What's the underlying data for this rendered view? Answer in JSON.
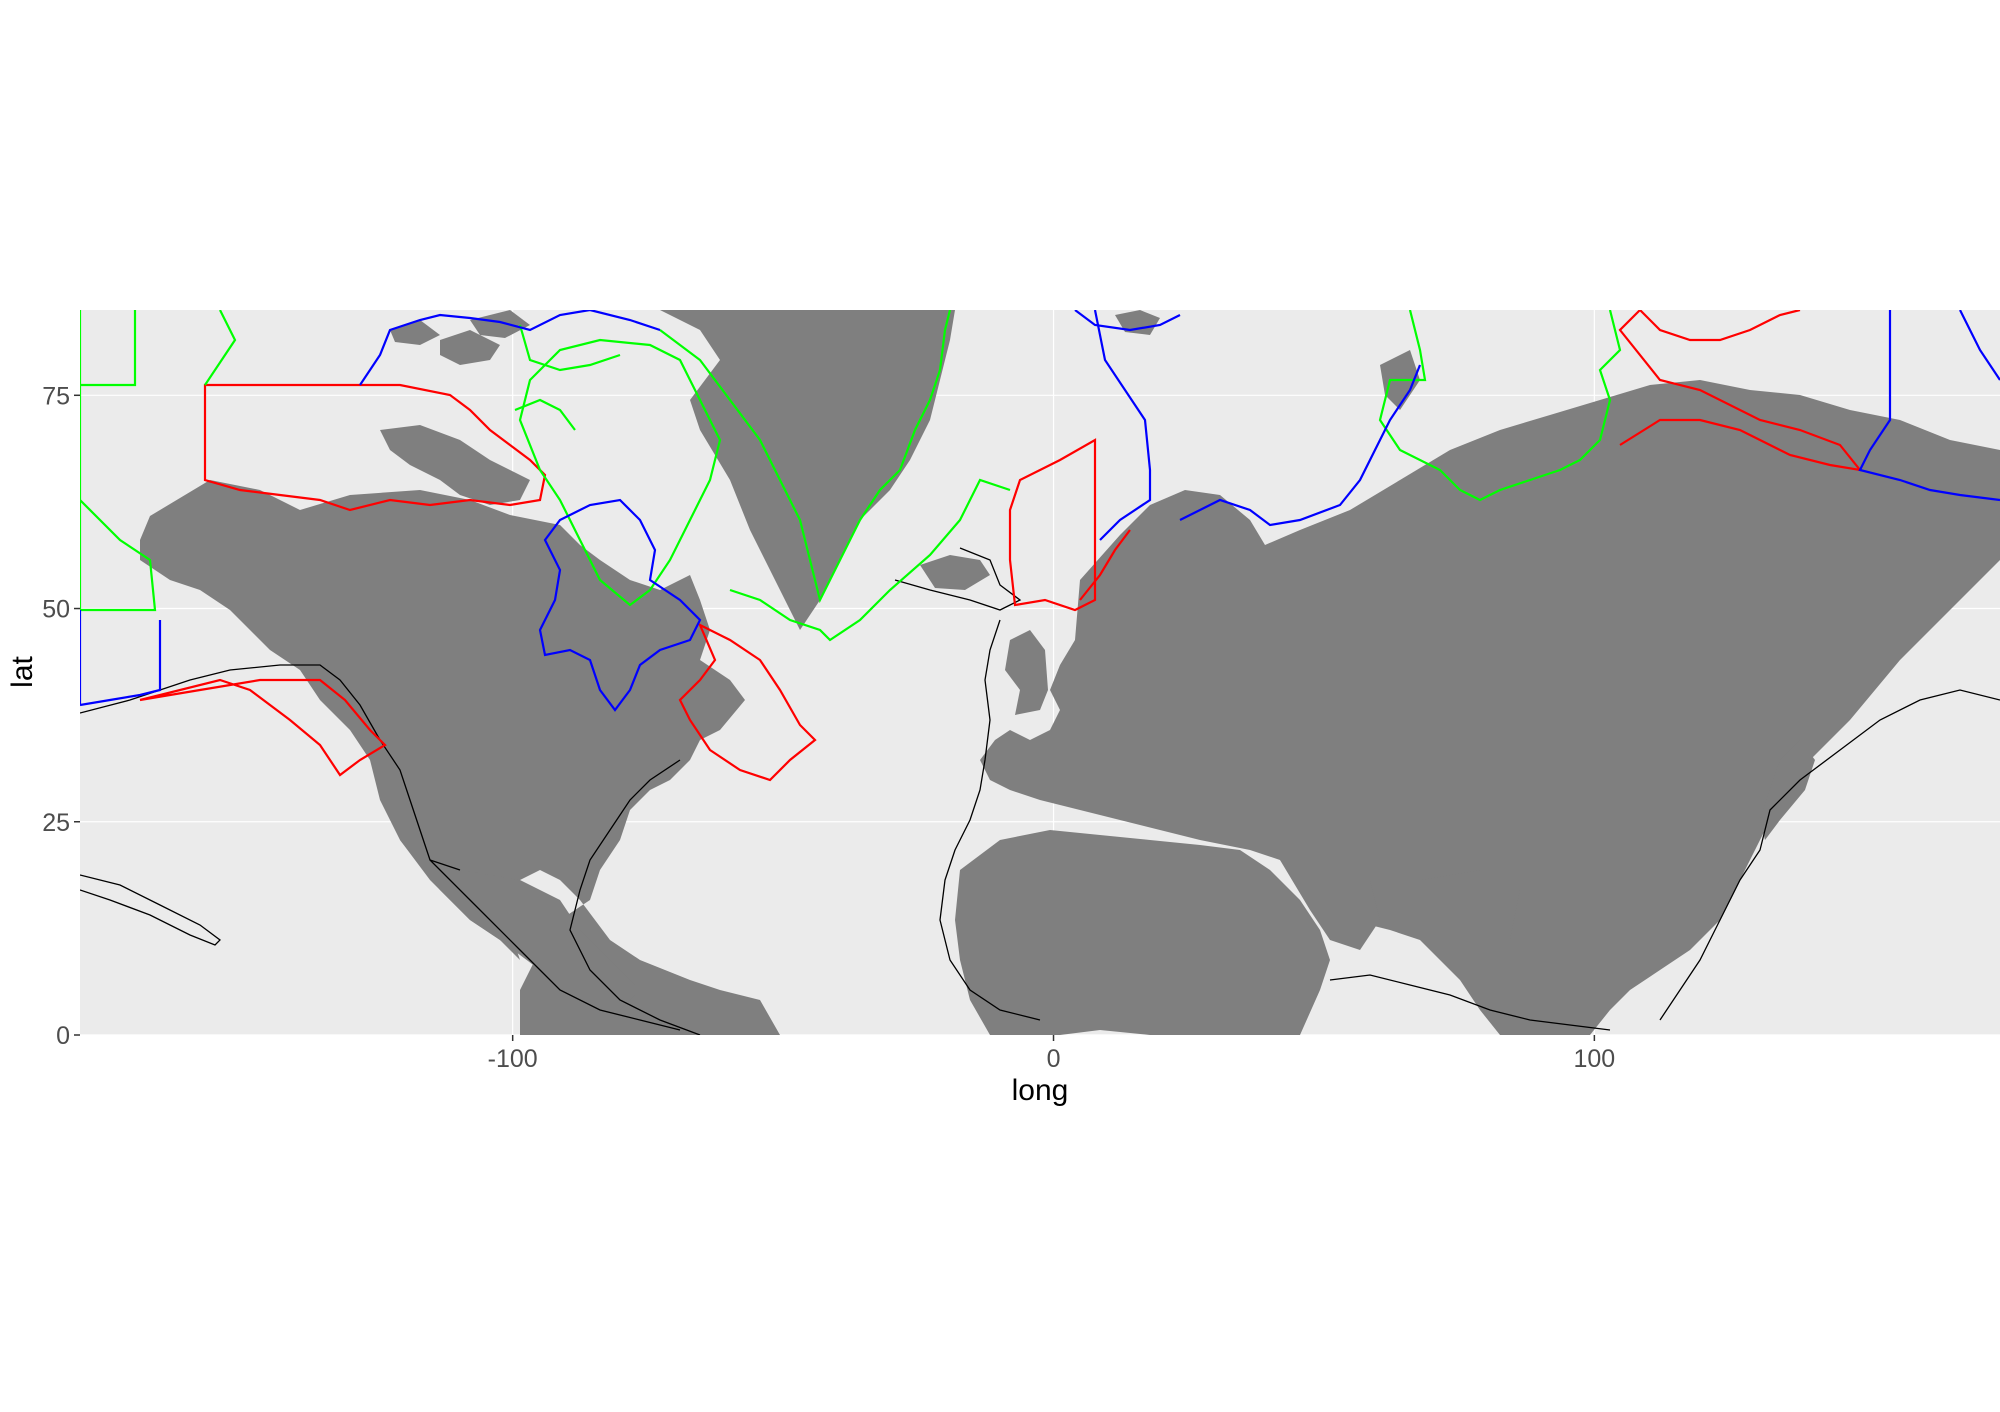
{
  "colors": {
    "panel_background": "#ebebeb",
    "grid_major": "#ffffff",
    "land": "#7f7f7f",
    "eez_outline": "#000000",
    "series_red": "#ff0000",
    "series_green": "#00ff00",
    "series_blue": "#0000ff",
    "tick_text": "#4d4d4d"
  },
  "chart_data": {
    "type": "map",
    "xlabel": "long",
    "ylabel": "lat",
    "xlim": [
      -180,
      175
    ],
    "ylim": [
      0,
      85
    ],
    "x_ticks": [
      {
        "value": -100,
        "label": "-100"
      },
      {
        "value": 0,
        "label": "0"
      },
      {
        "value": 100,
        "label": "100"
      }
    ],
    "y_ticks": [
      {
        "value": 0,
        "label": "0"
      },
      {
        "value": 25,
        "label": "25"
      },
      {
        "value": 50,
        "label": "50"
      },
      {
        "value": 75,
        "label": "75"
      }
    ],
    "grid": true,
    "legend": "none",
    "layers": [
      {
        "kind": "land",
        "color": "#7f7f7f"
      },
      {
        "kind": "eez-boundaries",
        "color": "#000000"
      },
      {
        "kind": "region-outline",
        "color": "#ff0000"
      },
      {
        "kind": "region-outline",
        "color": "#00ff00"
      },
      {
        "kind": "region-outline",
        "color": "#0000ff"
      }
    ]
  }
}
